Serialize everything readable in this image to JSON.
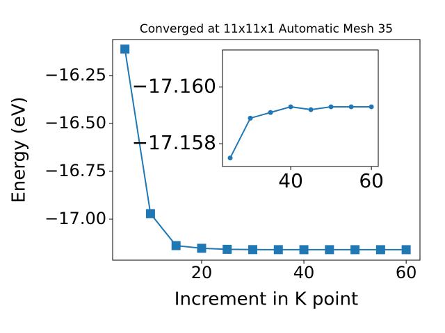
{
  "chart_data": [
    {
      "type": "line",
      "marker": "square",
      "color": "#1f77b4",
      "title": "Converged at 11x11x1 Automatic Mesh 35",
      "x_label": "Increment in K point",
      "y_label": "Energy (eV)",
      "x": [
        5,
        10,
        15,
        20,
        25,
        30,
        35,
        40,
        45,
        50,
        55,
        60
      ],
      "values": [
        -16.112,
        -16.971,
        -17.138,
        -17.152,
        -17.1575,
        -17.1589,
        -17.1591,
        -17.1593,
        -17.1592,
        -17.1593,
        -17.1593,
        -17.1593
      ],
      "xlim": [
        2.6,
        62.7
      ],
      "ylim": [
        -17.214,
        -16.062
      ],
      "xticks": [
        20,
        40,
        60
      ],
      "yticks": [
        {
          "value": -17.0,
          "label": "−17.00"
        },
        {
          "value": -16.75,
          "label": "−16.75"
        },
        {
          "value": -16.5,
          "label": "−16.50"
        },
        {
          "value": -16.25,
          "label": "−16.25"
        }
      ]
    },
    {
      "type": "line",
      "marker": "circle",
      "color": "#1f77b4",
      "x": [
        25,
        30,
        35,
        40,
        45,
        50,
        55,
        60
      ],
      "values": [
        -17.1575,
        -17.1589,
        -17.1591,
        -17.1593,
        -17.1592,
        -17.1593,
        -17.1593,
        -17.1593
      ],
      "xlim": [
        23.1,
        61.7
      ],
      "ylim": [
        -17.1572,
        -17.1613
      ],
      "xticks": [
        40,
        60
      ],
      "yticks": [
        {
          "value": -17.158,
          "label": "−17.158"
        },
        {
          "value": -17.16,
          "label": "−17.160"
        }
      ]
    }
  ]
}
